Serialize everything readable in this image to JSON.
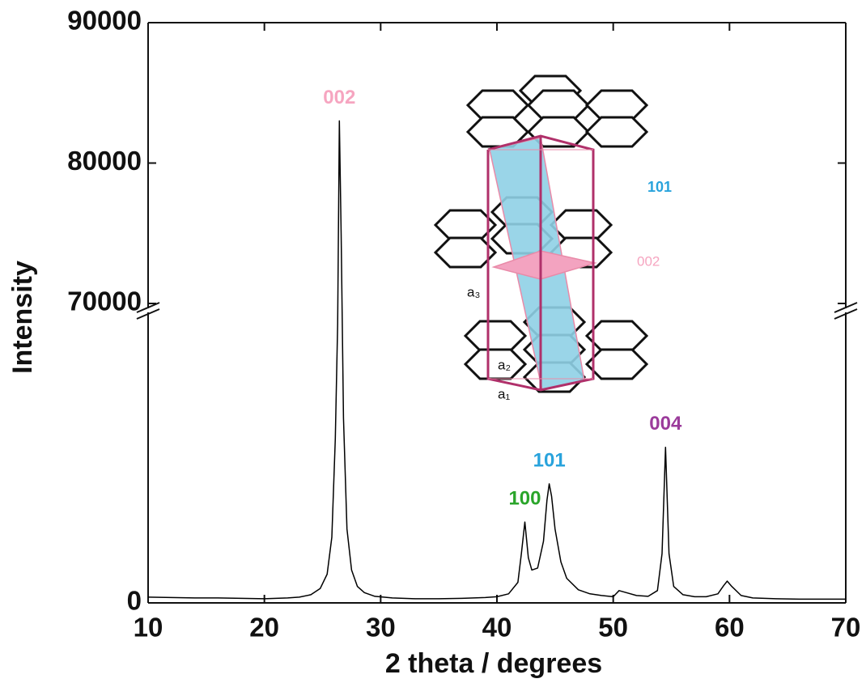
{
  "chart_data": {
    "type": "line",
    "x_label": "2 theta / degrees",
    "y_label": "Intensity",
    "x": [
      10,
      12,
      14,
      16,
      18,
      20,
      22,
      23,
      24,
      24.8,
      25.4,
      25.8,
      26.1,
      26.3,
      26.45,
      26.6,
      26.8,
      27.1,
      27.5,
      28,
      28.6,
      29.5,
      31,
      33,
      35,
      37,
      39,
      40,
      41,
      41.8,
      42.1,
      42.4,
      42.7,
      43,
      43.5,
      44,
      44.3,
      44.5,
      44.7,
      45,
      45.5,
      46,
      47,
      48,
      49,
      50,
      50.5,
      51,
      52,
      53,
      53.8,
      54.2,
      54.5,
      54.8,
      55.2,
      56,
      57,
      58,
      59,
      59.5,
      59.8,
      60.2,
      61,
      62,
      64,
      66,
      68,
      70
    ],
    "values": [
      1400,
      1300,
      1200,
      1200,
      1100,
      1000,
      1200,
      1400,
      2000,
      3500,
      7000,
      16000,
      40000,
      68000,
      83000,
      75000,
      45000,
      18000,
      8000,
      4000,
      2500,
      1600,
      1200,
      1000,
      1000,
      1100,
      1300,
      1500,
      2200,
      5000,
      12000,
      19700,
      11000,
      8000,
      8500,
      15000,
      25000,
      29000,
      26000,
      18000,
      10000,
      6000,
      3200,
      2200,
      1800,
      1500,
      3000,
      2600,
      1800,
      1600,
      3000,
      12000,
      37900,
      12000,
      4000,
      2000,
      1500,
      1500,
      2200,
      4200,
      5300,
      4000,
      1800,
      1200,
      1000,
      900,
      900,
      900
    ],
    "color": "#000000",
    "xlim": [
      10,
      70
    ],
    "xticks": [
      10,
      20,
      30,
      40,
      50,
      60,
      70
    ],
    "ylim": [
      0,
      90000
    ],
    "yticks": [
      0,
      70000,
      80000,
      90000
    ],
    "y_axis_break": 70000,
    "annotations": [
      {
        "text": "002",
        "x": 26.45,
        "color": "#f6a5c0"
      },
      {
        "text": "100",
        "x": 42.4,
        "color": "#2aa52a"
      },
      {
        "text": "101",
        "x": 44.5,
        "color": "#29a3dc"
      },
      {
        "text": "004",
        "x": 54.5,
        "color": "#9b3b9b"
      }
    ],
    "inset_labels": {
      "plane_101": "101",
      "plane_002": "002",
      "a3": "a₃",
      "a2": "a₂",
      "a1": "a₁"
    }
  }
}
